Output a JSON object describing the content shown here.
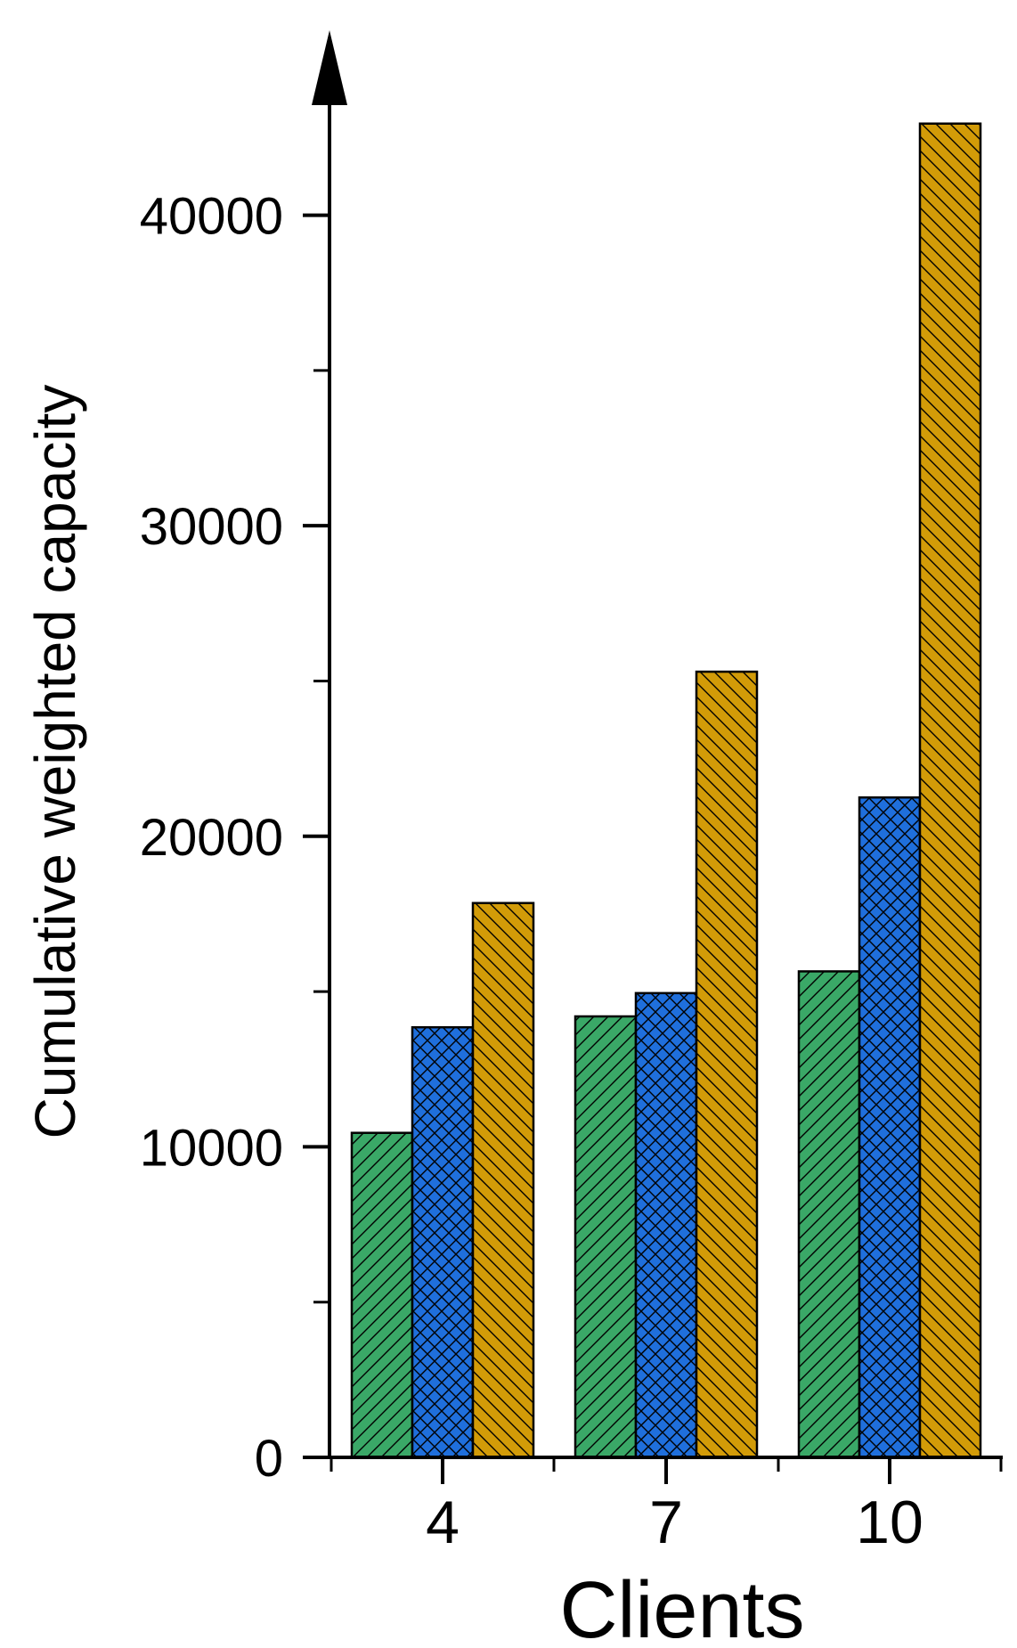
{
  "chart_data": {
    "type": "bar",
    "title": "",
    "xlabel": "Clients",
    "ylabel": "Cumulative weighted capacity",
    "categories": [
      "4",
      "7",
      "10"
    ],
    "series": [
      {
        "values": [
          10450,
          14200,
          15650
        ],
        "color": "#3aa867",
        "pattern": "hatch-forward-diagonal"
      },
      {
        "values": [
          13850,
          14950,
          21250
        ],
        "color": "#1f6fdc",
        "pattern": "crosshatch"
      },
      {
        "values": [
          17850,
          25300,
          42950
        ],
        "color": "#d29b08",
        "pattern": "hatch-back-diagonal"
      }
    ],
    "ylim": [
      0,
      45000
    ],
    "yticks": [
      0,
      10000,
      20000,
      30000,
      40000
    ],
    "ytick_labels": [
      "0",
      "10000",
      "20000",
      "30000",
      "40000"
    ],
    "grid": false,
    "legend": "none"
  }
}
